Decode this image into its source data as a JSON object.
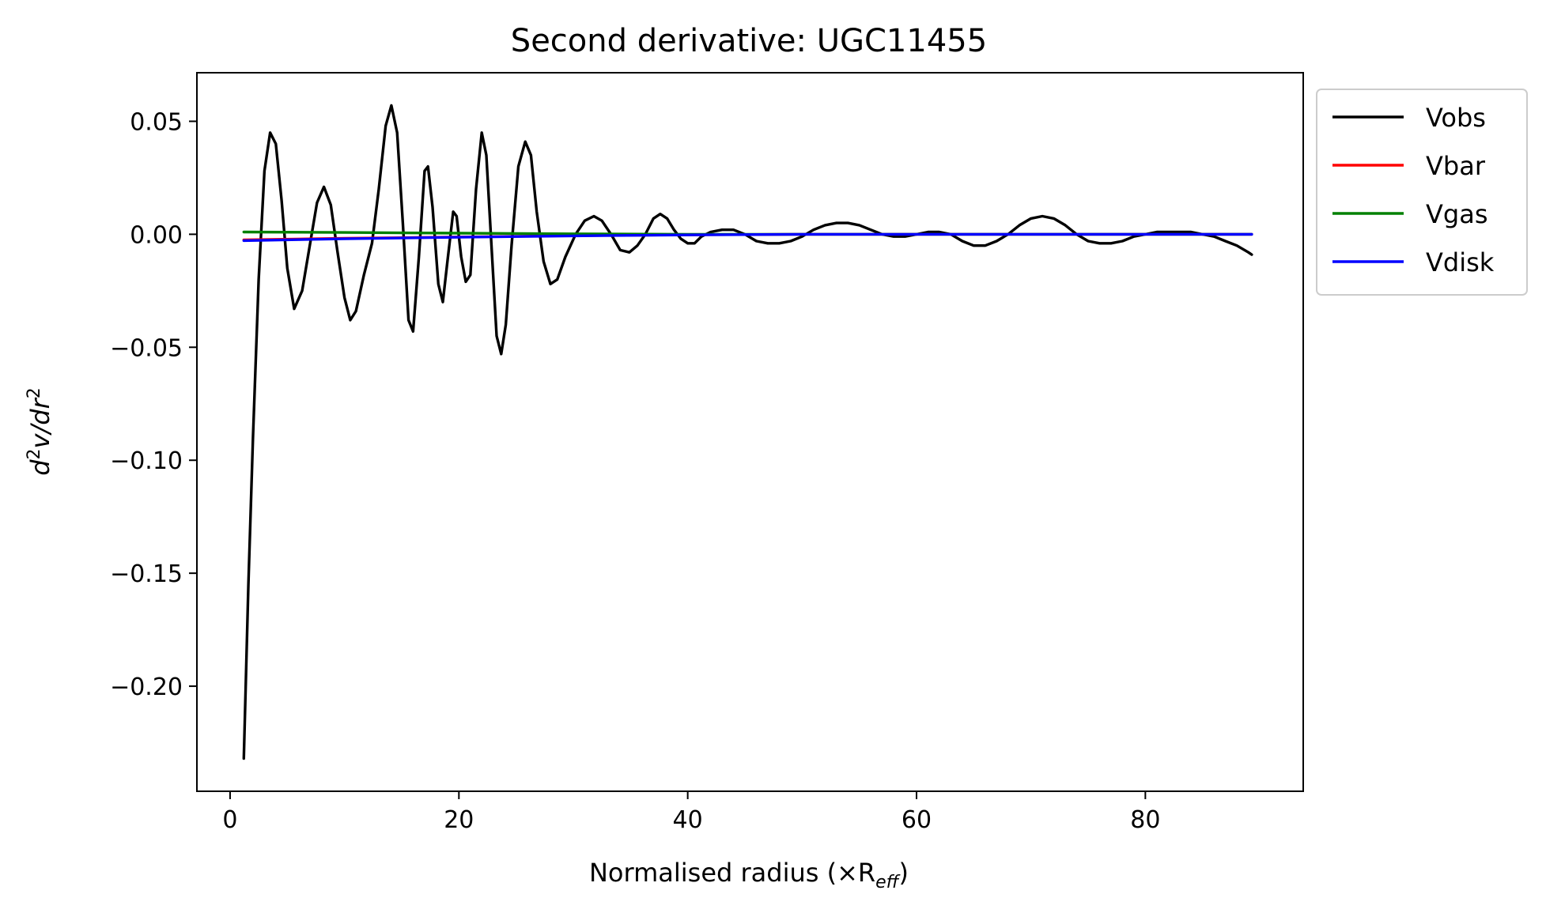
{
  "chart_data": {
    "type": "line",
    "title": "Second derivative: UGC11455",
    "xlabel": "Normalised radius (×R",
    "xlabel_sub": "eff",
    "xlabel_close": ")",
    "ylabel_pre": "d",
    "ylabel_sup1": "2",
    "ylabel_mid": "v/dr",
    "ylabel_sup2": "2",
    "xlim": [
      -2.9,
      93.8
    ],
    "ylim": [
      -0.2465,
      0.0715
    ],
    "xticks": [
      0,
      20,
      40,
      60,
      80
    ],
    "xtick_labels": [
      "0",
      "20",
      "40",
      "60",
      "80"
    ],
    "yticks": [
      0.05,
      0.0,
      -0.05,
      -0.1,
      -0.15,
      -0.2
    ],
    "ytick_labels": [
      "0.05",
      "0.00",
      "−0.05",
      "−0.10",
      "−0.15",
      "−0.20"
    ],
    "grid": false,
    "legend_position": "outside-right-top",
    "series": [
      {
        "name": "Vobs",
        "color": "#000000",
        "points": [
          [
            1.2,
            -0.232
          ],
          [
            1.6,
            -0.155
          ],
          [
            2.0,
            -0.09
          ],
          [
            2.5,
            -0.02
          ],
          [
            3.0,
            0.028
          ],
          [
            3.5,
            0.045
          ],
          [
            4.0,
            0.04
          ],
          [
            4.5,
            0.015
          ],
          [
            5.0,
            -0.015
          ],
          [
            5.6,
            -0.033
          ],
          [
            6.3,
            -0.025
          ],
          [
            7.0,
            -0.004
          ],
          [
            7.6,
            0.014
          ],
          [
            8.2,
            0.021
          ],
          [
            8.8,
            0.013
          ],
          [
            9.4,
            -0.008
          ],
          [
            10.0,
            -0.028
          ],
          [
            10.5,
            -0.038
          ],
          [
            11.0,
            -0.034
          ],
          [
            11.7,
            -0.018
          ],
          [
            12.4,
            -0.004
          ],
          [
            13.0,
            0.02
          ],
          [
            13.6,
            0.048
          ],
          [
            14.1,
            0.057
          ],
          [
            14.6,
            0.045
          ],
          [
            15.1,
            0.005
          ],
          [
            15.6,
            -0.038
          ],
          [
            16.0,
            -0.043
          ],
          [
            16.5,
            -0.01
          ],
          [
            17.0,
            0.028
          ],
          [
            17.3,
            0.03
          ],
          [
            17.7,
            0.012
          ],
          [
            18.2,
            -0.022
          ],
          [
            18.6,
            -0.03
          ],
          [
            19.0,
            -0.012
          ],
          [
            19.5,
            0.01
          ],
          [
            19.8,
            0.008
          ],
          [
            20.2,
            -0.01
          ],
          [
            20.6,
            -0.021
          ],
          [
            21.0,
            -0.018
          ],
          [
            21.5,
            0.02
          ],
          [
            22.0,
            0.045
          ],
          [
            22.4,
            0.035
          ],
          [
            22.9,
            -0.01
          ],
          [
            23.3,
            -0.045
          ],
          [
            23.7,
            -0.053
          ],
          [
            24.1,
            -0.04
          ],
          [
            24.6,
            -0.005
          ],
          [
            25.2,
            0.03
          ],
          [
            25.8,
            0.041
          ],
          [
            26.3,
            0.035
          ],
          [
            26.8,
            0.01
          ],
          [
            27.4,
            -0.012
          ],
          [
            28.0,
            -0.022
          ],
          [
            28.6,
            -0.02
          ],
          [
            29.3,
            -0.01
          ],
          [
            30.2,
            0.0
          ],
          [
            31.0,
            0.006
          ],
          [
            31.8,
            0.008
          ],
          [
            32.5,
            0.006
          ],
          [
            33.3,
            0.0
          ],
          [
            34.1,
            -0.007
          ],
          [
            34.9,
            -0.008
          ],
          [
            35.6,
            -0.005
          ],
          [
            36.3,
            0.0
          ],
          [
            37.0,
            0.007
          ],
          [
            37.6,
            0.009
          ],
          [
            38.2,
            0.007
          ],
          [
            38.8,
            0.002
          ],
          [
            39.4,
            -0.002
          ],
          [
            40.0,
            -0.004
          ],
          [
            40.6,
            -0.004
          ],
          [
            41.2,
            -0.001
          ],
          [
            42.0,
            0.001
          ],
          [
            43.0,
            0.002
          ],
          [
            44.0,
            0.002
          ],
          [
            45.0,
            0.0
          ],
          [
            46.0,
            -0.003
          ],
          [
            47.0,
            -0.004
          ],
          [
            48.0,
            -0.004
          ],
          [
            49.0,
            -0.003
          ],
          [
            50.0,
            -0.001
          ],
          [
            51.0,
            0.002
          ],
          [
            52.0,
            0.004
          ],
          [
            53.0,
            0.005
          ],
          [
            54.0,
            0.005
          ],
          [
            55.0,
            0.004
          ],
          [
            56.0,
            0.002
          ],
          [
            57.0,
            0.0
          ],
          [
            58.0,
            -0.001
          ],
          [
            59.0,
            -0.001
          ],
          [
            60.0,
            0.0
          ],
          [
            61.0,
            0.001
          ],
          [
            62.0,
            0.001
          ],
          [
            63.0,
            0.0
          ],
          [
            64.0,
            -0.003
          ],
          [
            65.0,
            -0.005
          ],
          [
            66.0,
            -0.005
          ],
          [
            67.0,
            -0.003
          ],
          [
            68.0,
            0.0
          ],
          [
            69.0,
            0.004
          ],
          [
            70.0,
            0.007
          ],
          [
            71.0,
            0.008
          ],
          [
            72.0,
            0.007
          ],
          [
            73.0,
            0.004
          ],
          [
            74.0,
            0.0
          ],
          [
            75.0,
            -0.003
          ],
          [
            76.0,
            -0.004
          ],
          [
            77.0,
            -0.004
          ],
          [
            78.0,
            -0.003
          ],
          [
            79.0,
            -0.001
          ],
          [
            80.0,
            0.0
          ],
          [
            81.0,
            0.001
          ],
          [
            82.0,
            0.001
          ],
          [
            83.0,
            0.001
          ],
          [
            84.0,
            0.001
          ],
          [
            85.0,
            0.0
          ],
          [
            86.0,
            -0.001
          ],
          [
            87.0,
            -0.003
          ],
          [
            88.0,
            -0.005
          ],
          [
            89.0,
            -0.008
          ],
          [
            89.3,
            -0.009
          ]
        ]
      },
      {
        "name": "Vbar",
        "color": "#ff0000",
        "points": [
          [
            1.2,
            -0.0025
          ],
          [
            10.0,
            -0.0018
          ],
          [
            20.0,
            -0.0012
          ],
          [
            30.0,
            -0.0006
          ],
          [
            40.0,
            -0.0002
          ],
          [
            50.0,
            0.0
          ],
          [
            60.0,
            0.0
          ],
          [
            70.0,
            0.0
          ],
          [
            80.0,
            0.0
          ],
          [
            89.3,
            0.0
          ]
        ]
      },
      {
        "name": "Vgas",
        "color": "#008000",
        "points": [
          [
            1.2,
            0.001
          ],
          [
            10.0,
            0.0008
          ],
          [
            20.0,
            0.0005
          ],
          [
            30.0,
            0.0002
          ],
          [
            40.0,
            0.0
          ],
          [
            50.0,
            0.0
          ],
          [
            60.0,
            0.0
          ],
          [
            70.0,
            0.0
          ],
          [
            80.0,
            0.0
          ],
          [
            89.3,
            0.0
          ]
        ]
      },
      {
        "name": "Vdisk",
        "color": "#0000ff",
        "points": [
          [
            1.2,
            -0.0028
          ],
          [
            10.0,
            -0.002
          ],
          [
            20.0,
            -0.0013
          ],
          [
            30.0,
            -0.0007
          ],
          [
            40.0,
            -0.0003
          ],
          [
            50.0,
            0.0
          ],
          [
            60.0,
            0.0
          ],
          [
            70.0,
            0.0
          ],
          [
            80.0,
            0.0
          ],
          [
            89.3,
            0.0
          ]
        ]
      }
    ]
  }
}
